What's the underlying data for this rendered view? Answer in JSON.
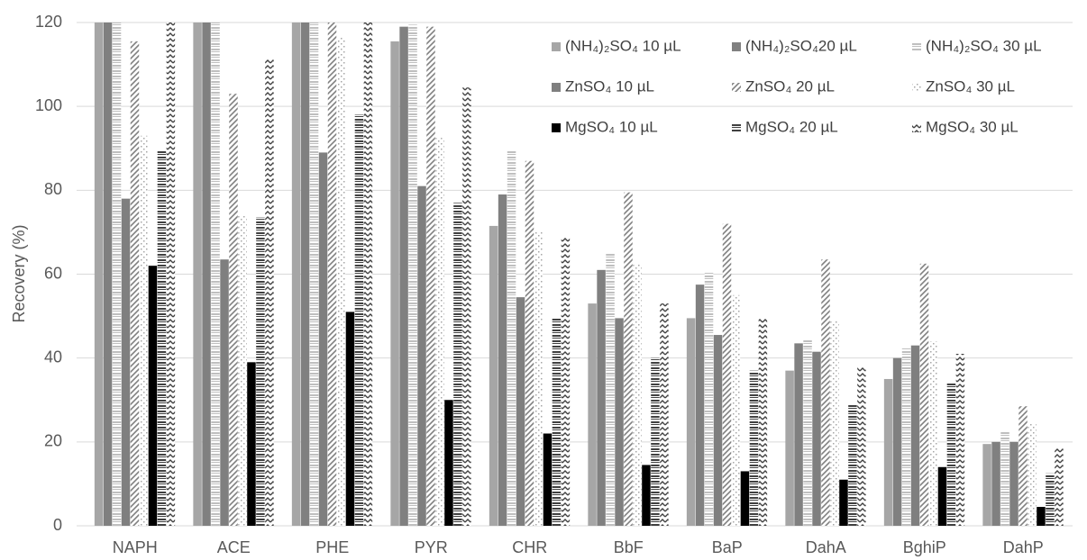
{
  "chart_data": {
    "type": "bar",
    "y_label": "Recovery (%)",
    "categories": [
      "NAPH",
      "ACE",
      "PHE",
      "PYR",
      "CHR",
      "BbF",
      "BaP",
      "DahA",
      "BghiP",
      "DahP"
    ],
    "ylim": [
      0,
      120
    ],
    "yticks": [
      0,
      20,
      40,
      60,
      80,
      100,
      120
    ],
    "grid": true,
    "series": [
      {
        "name": "(NH₄)₂SO₄ 10 µL",
        "color": "#a6a6a6",
        "pattern": "solid",
        "values": [
          120,
          120,
          120,
          115.5,
          71.5,
          53,
          49.5,
          37,
          35,
          19.5
        ]
      },
      {
        "name": "(NH₄)₂SO₄20 µL",
        "color": "#808080",
        "pattern": "solid",
        "values": [
          120,
          120,
          120,
          119,
          79,
          61,
          57.5,
          43.5,
          40,
          20
        ]
      },
      {
        "name": "(NH₄)₂SO₄ 30 µL",
        "color": "#bfbfbf",
        "pattern": "hlines",
        "values": [
          120,
          120,
          120,
          119.5,
          89.5,
          65,
          60.5,
          44.5,
          42.5,
          22.5
        ]
      },
      {
        "name": "ZnSO₄ 10 µL",
        "color": "#7f7f7f",
        "pattern": "solid",
        "values": [
          78,
          63.5,
          89,
          81,
          54.5,
          49.5,
          45.5,
          41.5,
          43,
          20
        ]
      },
      {
        "name": "ZnSO₄ 20 µL",
        "color": "#808080",
        "pattern": "diag",
        "values": [
          115.5,
          103,
          120,
          119,
          87,
          79.5,
          72,
          63.5,
          62.5,
          28.5
        ]
      },
      {
        "name": "ZnSO₄ 30 µL",
        "color": "#a6a6a6",
        "pattern": "dots",
        "values": [
          93,
          74,
          116.5,
          92.5,
          70,
          62.5,
          55,
          49,
          44,
          24.5
        ]
      },
      {
        "name": "MgSO₄ 10 µL",
        "color": "#000000",
        "pattern": "solid",
        "values": [
          62,
          39,
          51,
          30,
          22,
          14.5,
          13,
          11,
          14,
          4.5
        ]
      },
      {
        "name": "MgSO₄ 20 µL",
        "color": "#404040",
        "pattern": "hlines",
        "values": [
          89.5,
          73.5,
          98,
          77,
          49.5,
          40,
          37,
          29,
          34,
          12.5
        ]
      },
      {
        "name": "MgSO₄ 30 µL",
        "color": "#404040",
        "pattern": "zigzag",
        "values": [
          120,
          111.5,
          120,
          104.5,
          69,
          53,
          49.5,
          38,
          41,
          18.5
        ]
      }
    ]
  }
}
